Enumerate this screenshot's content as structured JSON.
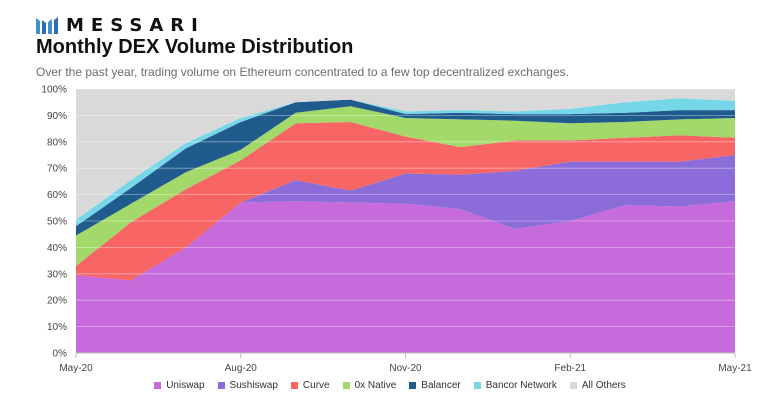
{
  "header": {
    "brand": "MESSARI",
    "title": "Monthly DEX Volume Distribution",
    "subtitle": "Over the past year, trading volume on Ethereum concentrated to a  few top decentralized exchanges."
  },
  "chart_data": {
    "type": "area",
    "stacked": true,
    "x": [
      "May-20",
      "Jun-20",
      "Jul-20",
      "Aug-20",
      "Sep-20",
      "Oct-20",
      "Nov-20",
      "Dec-20",
      "Jan-21",
      "Feb-21",
      "Mar-21",
      "Apr-21",
      "May-21"
    ],
    "xtick_labels": [
      "May-20",
      "Aug-20",
      "Nov-20",
      "Feb-21",
      "May-21"
    ],
    "xtick_index": [
      0,
      3,
      6,
      9,
      12
    ],
    "ylim": [
      0,
      100
    ],
    "yticks": [
      0,
      10,
      20,
      30,
      40,
      50,
      60,
      70,
      80,
      90,
      100
    ],
    "ytick_format": "%",
    "grid": true,
    "legend_position": "bottom",
    "series": [
      {
        "name": "Uniswap",
        "color": "#c76bdc",
        "values": [
          29.5,
          27.5,
          40,
          57,
          57.5,
          57,
          56.5,
          54.5,
          47,
          50,
          56,
          55.5,
          57.5
        ]
      },
      {
        "name": "Sushiswap",
        "color": "#8b6cd9",
        "values": [
          0,
          0,
          0,
          0,
          8,
          4.5,
          11.5,
          13,
          22,
          22.5,
          16.5,
          17,
          17.5
        ]
      },
      {
        "name": "Curve",
        "color": "#f76565",
        "values": [
          3.5,
          22,
          22,
          16,
          21.5,
          26,
          14,
          10.5,
          11.5,
          8,
          9,
          10,
          6.5
        ]
      },
      {
        "name": "0x Native",
        "color": "#a3d96b",
        "values": [
          11.5,
          7,
          6.5,
          4,
          4,
          6,
          7,
          10.5,
          7.5,
          6.5,
          6,
          6,
          7.5
        ]
      },
      {
        "name": "Balancer",
        "color": "#1f5b8c",
        "values": [
          3.5,
          6,
          9,
          10.5,
          4,
          2.5,
          1.5,
          2.5,
          2.5,
          3.5,
          3.5,
          3.5,
          3
        ]
      },
      {
        "name": "Bancor Network",
        "color": "#75d7e8",
        "values": [
          2.5,
          3,
          2,
          1.5,
          0,
          0,
          1,
          1,
          1,
          2,
          4,
          4.5,
          3.5
        ]
      },
      {
        "name": "All Others",
        "color": "#d9d9d9",
        "values": [
          49.5,
          34.5,
          20.5,
          11,
          5,
          4,
          8.5,
          8,
          8.5,
          7.5,
          5,
          3.5,
          4.5
        ]
      }
    ]
  }
}
